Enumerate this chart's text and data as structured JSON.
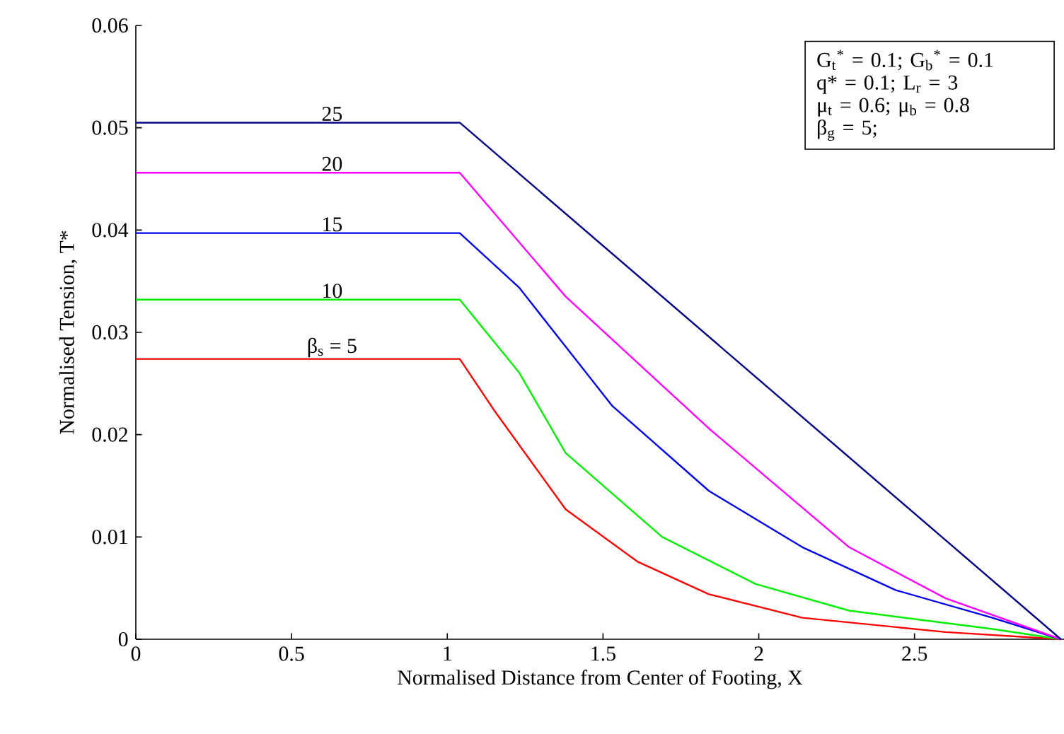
{
  "chart_data": {
    "type": "line",
    "xlabel": "Normalised Distance from Center of Footing, X",
    "ylabel": "Normalised Tension, T*",
    "xlim": [
      0,
      2.98
    ],
    "ylim": [
      0,
      0.06
    ],
    "xticks": [
      0,
      0.5,
      1,
      1.5,
      2,
      2.5
    ],
    "yticks": [
      0,
      0.01,
      0.02,
      0.03,
      0.04,
      0.05,
      0.06
    ],
    "grid": false,
    "legend": false,
    "marker": "none",
    "line_style": "solid",
    "series": [
      {
        "name": "β$_{s}$ = 5",
        "color": "#ff0000",
        "x": [
          0,
          1.04,
          1.15,
          1.38,
          1.61,
          1.84,
          2.14,
          2.6,
          2.97
        ],
        "values": [
          0.0274,
          0.0274,
          0.0224,
          0.0127,
          0.0076,
          0.0044,
          0.0021,
          0.0007,
          0
        ]
      },
      {
        "name": "10",
        "color": "#00ee00",
        "x": [
          0,
          1.04,
          1.23,
          1.38,
          1.69,
          1.99,
          2.29,
          2.75,
          2.97
        ],
        "values": [
          0.0332,
          0.0332,
          0.0261,
          0.0182,
          0.01,
          0.0054,
          0.0028,
          0.001,
          0
        ]
      },
      {
        "name": "15",
        "color": "#0000ee",
        "x": [
          0,
          1.04,
          1.23,
          1.53,
          1.84,
          2.14,
          2.44,
          2.75,
          2.97
        ],
        "values": [
          0.0397,
          0.0397,
          0.0344,
          0.0228,
          0.0145,
          0.009,
          0.0048,
          0.0021,
          0
        ]
      },
      {
        "name": "20",
        "color": "#ff00ff",
        "x": [
          0,
          1.04,
          1.38,
          1.84,
          2.29,
          2.6,
          2.97
        ],
        "values": [
          0.0456,
          0.0456,
          0.0335,
          0.0206,
          0.009,
          0.004,
          0
        ]
      },
      {
        "name": "25",
        "color": "#000080",
        "x": [
          0,
          1.04,
          2.97
        ],
        "values": [
          0.0505,
          0.0505,
          0
        ]
      }
    ],
    "annotations": [
      "G$_{t}$$^{*}$ = 0.1; G$_{b}$$^{*}$ = 0.1",
      "q* = 0.1; L$_{r}$ = 3",
      "μ$_{t}$ = 0.6;   μ$_{b}$ = 0.8",
      "β$_{g}$ = 5;"
    ]
  }
}
